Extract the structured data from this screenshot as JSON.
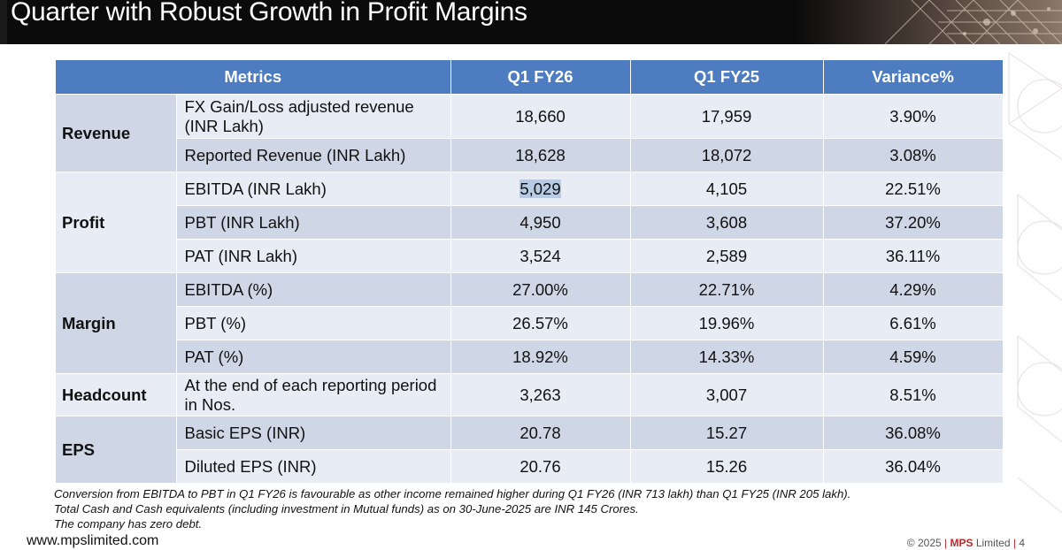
{
  "slide": {
    "title": "Quarter with Robust Growth in Profit Margins"
  },
  "table": {
    "headers": [
      "Metrics",
      "Q1 FY26",
      "Q1 FY25",
      "Variance%"
    ],
    "groups": [
      "Revenue",
      "Profit",
      "Margin",
      "Headcount",
      "EPS"
    ],
    "rows": [
      {
        "metric": "FX Gain/Loss adjusted revenue (INR Lakh)",
        "q1fy26": "18,660",
        "q1fy25": "17,959",
        "variance": "3.90%"
      },
      {
        "metric": "Reported Revenue (INR Lakh)",
        "q1fy26": "18,628",
        "q1fy25": "18,072",
        "variance": "3.08%"
      },
      {
        "metric": "EBITDA (INR Lakh)",
        "q1fy26": "5,029",
        "q1fy25": "4,105",
        "variance": "22.51%"
      },
      {
        "metric": "PBT (INR Lakh)",
        "q1fy26": "4,950",
        "q1fy25": "3,608",
        "variance": "37.20%"
      },
      {
        "metric": "PAT (INR Lakh)",
        "q1fy26": "3,524",
        "q1fy25": "2,589",
        "variance": "36.11%"
      },
      {
        "metric": "EBITDA (%)",
        "q1fy26": "27.00%",
        "q1fy25": "22.71%",
        "variance": "4.29%"
      },
      {
        "metric": "PBT (%)",
        "q1fy26": "26.57%",
        "q1fy25": "19.96%",
        "variance": "6.61%"
      },
      {
        "metric": "PAT (%)",
        "q1fy26": "18.92%",
        "q1fy25": "14.33%",
        "variance": "4.59%"
      },
      {
        "metric": "At the end of each reporting period in Nos.",
        "q1fy26": "3,263",
        "q1fy25": "3,007",
        "variance": "8.51%"
      },
      {
        "metric": "Basic EPS (INR)",
        "q1fy26": "20.78",
        "q1fy25": "15.27",
        "variance": "36.08%"
      },
      {
        "metric": "Diluted EPS (INR)",
        "q1fy26": "20.76",
        "q1fy25": "15.26",
        "variance": "36.04%"
      }
    ]
  },
  "notes": [
    "Conversion from EBITDA to PBT in Q1 FY26 is favourable  as other income remained higher during Q1 FY26 (INR 713 lakh) than Q1 FY25 (INR 205 lakh).",
    "Total Cash and Cash equivalents (including investment in Mutual funds) as on 30-June-2025 are INR 145 Crores.",
    "The company has zero debt."
  ],
  "footer": {
    "url": "www.mpslimited.com",
    "copyright": "© 2025",
    "company": "MPS",
    "company_suffix": "Limited",
    "page_number": "4"
  },
  "colors": {
    "header_blue": "#4e7cc0",
    "row_dark": "#cfd6e6",
    "row_light": "#e8ecf4",
    "accent_red": "#c0282d"
  }
}
